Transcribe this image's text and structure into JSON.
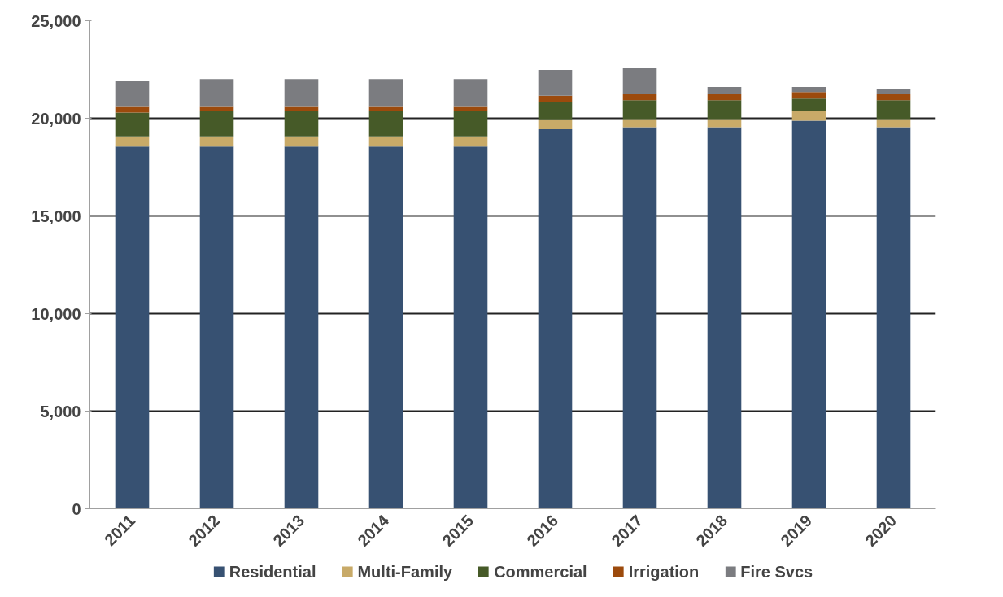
{
  "chart_data": {
    "type": "bar",
    "stacked": true,
    "categories": [
      "2011",
      "2012",
      "2013",
      "2014",
      "2015",
      "2016",
      "2017",
      "2018",
      "2019",
      "2020"
    ],
    "series": [
      {
        "name": "Residential",
        "color": "#375172",
        "values": [
          18550,
          18550,
          18550,
          18550,
          18550,
          19450,
          19540,
          19540,
          19880,
          19540
        ]
      },
      {
        "name": "Multi-Family",
        "color": "#c8aa68",
        "values": [
          520,
          520,
          520,
          520,
          520,
          500,
          420,
          420,
          490,
          420
        ]
      },
      {
        "name": "Commercial",
        "color": "#465a28",
        "values": [
          1220,
          1290,
          1290,
          1290,
          1290,
          900,
          970,
          970,
          640,
          970
        ]
      },
      {
        "name": "Irrigation",
        "color": "#9c4a0c",
        "values": [
          330,
          260,
          260,
          260,
          260,
          310,
          330,
          330,
          330,
          330
        ]
      },
      {
        "name": "Fire Svcs",
        "color": "#7b7c80",
        "values": [
          1320,
          1390,
          1390,
          1390,
          1390,
          1320,
          1310,
          340,
          260,
          250
        ]
      }
    ],
    "ylim": [
      0,
      25000
    ],
    "yticks": [
      {
        "value": 0,
        "label": "0"
      },
      {
        "value": 5000,
        "label": "5,000"
      },
      {
        "value": 10000,
        "label": "10,000"
      },
      {
        "value": 15000,
        "label": "15,000"
      },
      {
        "value": 20000,
        "label": "20,000"
      },
      {
        "value": 25000,
        "label": "25,000"
      }
    ],
    "grid": "y",
    "legend": "bottom"
  }
}
